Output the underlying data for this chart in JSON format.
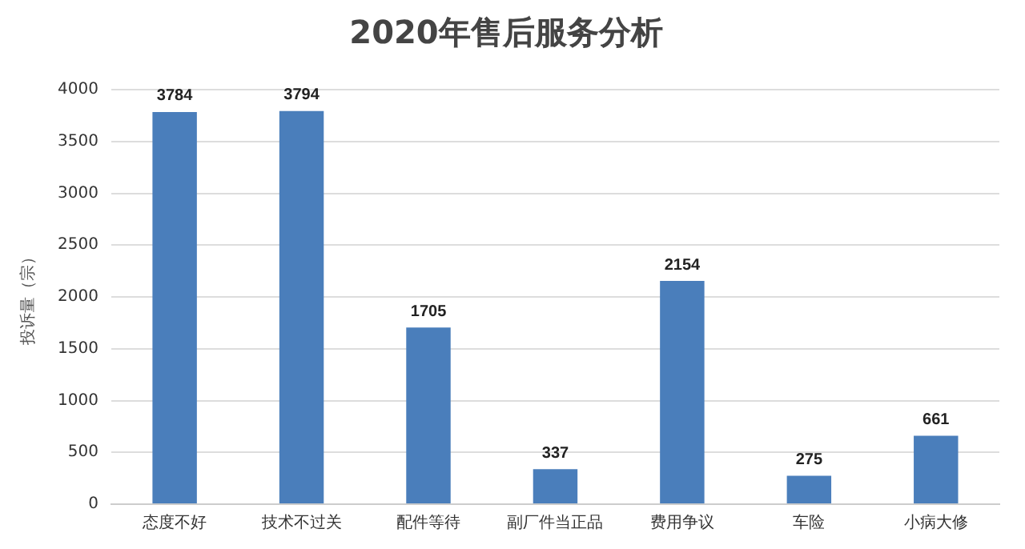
{
  "chart_data": {
    "type": "bar",
    "title": "2020年售后服务分析",
    "ylabel": "投诉量（宗）",
    "categories": [
      "态度不好",
      "技术不过关",
      "配件等待",
      "副厂件当正品",
      "费用争议",
      "车险",
      "小病大修"
    ],
    "values": [
      3784,
      3794,
      1705,
      337,
      2154,
      275,
      661
    ],
    "color": "#4a7ebb",
    "ylim": [
      0,
      4000
    ],
    "yticks": [
      0,
      500,
      1000,
      1500,
      2000,
      2500,
      3000,
      3500,
      4000
    ],
    "grid": "y",
    "data_labels": true,
    "legend": false
  }
}
